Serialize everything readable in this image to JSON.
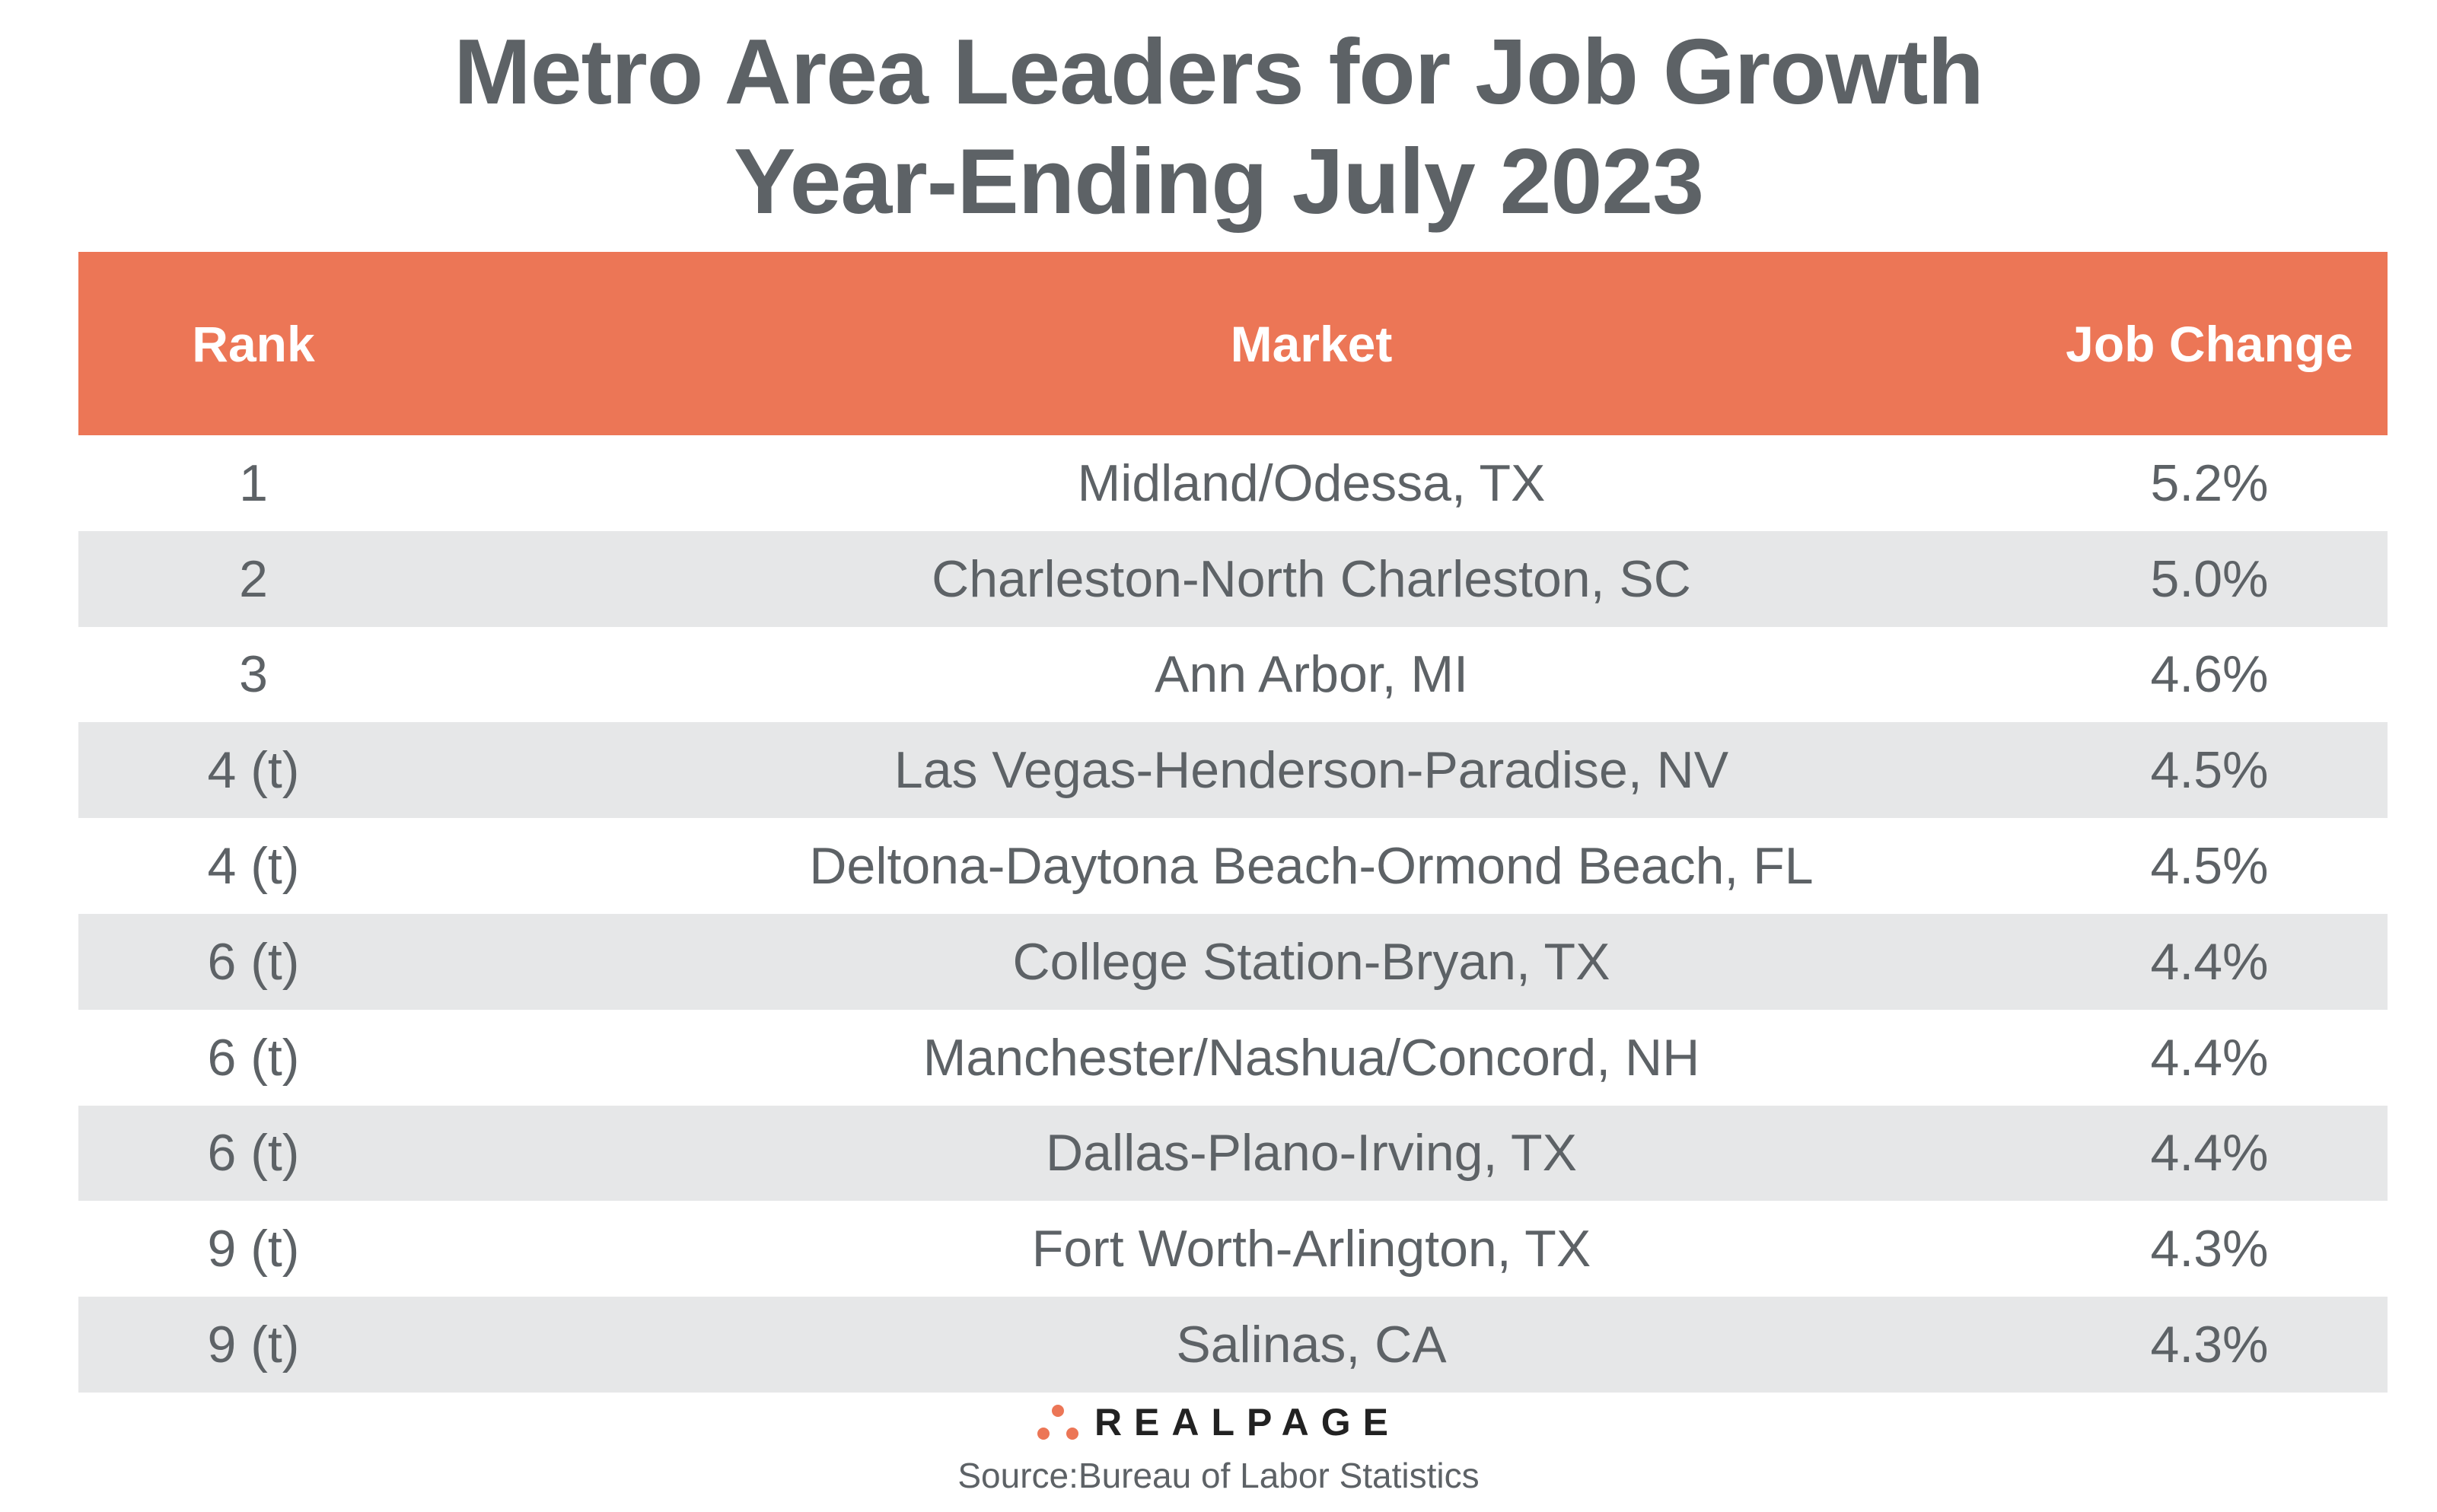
{
  "title_line1": "Metro Area Leaders for Job Growth",
  "title_line2": "Year-Ending July 2023",
  "colors": {
    "header": "#ec7656",
    "stripe": "#e6e7e8",
    "text": "#5d6266"
  },
  "chart_data": {
    "type": "table",
    "columns": [
      "Rank",
      "Market",
      "Job Change"
    ],
    "rows": [
      [
        "1",
        "Midland/Odessa, TX",
        "5.2%"
      ],
      [
        "2",
        "Charleston-North Charleston, SC",
        "5.0%"
      ],
      [
        "3",
        "Ann Arbor, MI",
        "4.6%"
      ],
      [
        "4 (t)",
        "Las Vegas-Henderson-Paradise, NV",
        "4.5%"
      ],
      [
        "4 (t)",
        "Deltona-Daytona Beach-Ormond Beach, FL",
        "4.5%"
      ],
      [
        "6 (t)",
        "College Station-Bryan, TX",
        "4.4%"
      ],
      [
        "6 (t)",
        "Manchester/Nashua/Concord, NH",
        "4.4%"
      ],
      [
        "6 (t)",
        "Dallas-Plano-Irving, TX",
        "4.4%"
      ],
      [
        "9 (t)",
        "Fort Worth-Arlington, TX",
        "4.3%"
      ],
      [
        "9 (t)",
        "Salinas, CA",
        "4.3%"
      ]
    ]
  },
  "logo": "REALPAGE",
  "source": "Source:Bureau of Labor Statistics"
}
